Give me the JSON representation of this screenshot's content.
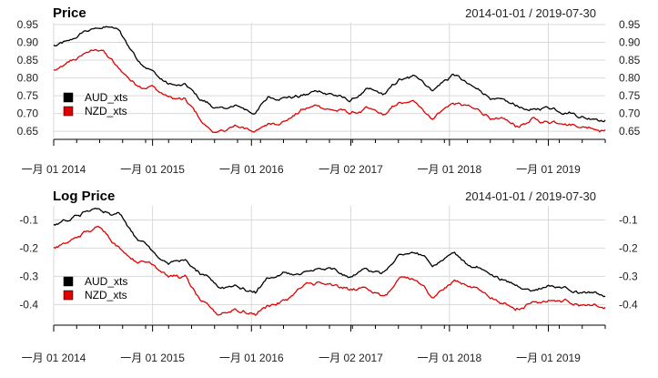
{
  "chart_data": [
    {
      "type": "line",
      "title": "Price",
      "date_range": "2014-01-01 / 2019-07-30",
      "xlabel": "",
      "ylabel": "",
      "ylim": [
        0.63,
        0.955
      ],
      "yticks": [
        0.65,
        0.7,
        0.75,
        0.8,
        0.85,
        0.9,
        0.95
      ],
      "ytick_labels": [
        "0.65",
        "0.70",
        "0.75",
        "0.80",
        "0.85",
        "0.90",
        "0.95"
      ],
      "grid": true,
      "legend_position": "bottom-left",
      "x": [
        "2014-01-01",
        "2014-03-01",
        "2014-05-01",
        "2014-07-01",
        "2014-09-01",
        "2014-11-01",
        "2015-01-01",
        "2015-03-01",
        "2015-05-01",
        "2015-07-01",
        "2015-09-01",
        "2015-11-01",
        "2016-01-15",
        "2016-03-01",
        "2016-05-01",
        "2016-07-01",
        "2016-09-01",
        "2016-11-01",
        "2017-01-01",
        "2017-03-01",
        "2017-05-01",
        "2017-07-01",
        "2017-09-01",
        "2017-11-01",
        "2018-01-15",
        "2018-03-01",
        "2018-05-01",
        "2018-07-01",
        "2018-09-01",
        "2018-11-01",
        "2019-01-01",
        "2019-03-01",
        "2019-05-01",
        "2019-07-30"
      ],
      "series": [
        {
          "name": "AUD_xts",
          "color": "#000000",
          "values": [
            0.89,
            0.9,
            0.93,
            0.94,
            0.93,
            0.86,
            0.82,
            0.78,
            0.78,
            0.74,
            0.71,
            0.72,
            0.7,
            0.74,
            0.75,
            0.75,
            0.76,
            0.75,
            0.73,
            0.76,
            0.75,
            0.79,
            0.8,
            0.77,
            0.81,
            0.78,
            0.76,
            0.74,
            0.72,
            0.71,
            0.72,
            0.71,
            0.7,
            0.69
          ]
        },
        {
          "name": "NZD_xts",
          "color": "#e00000",
          "values": [
            0.82,
            0.84,
            0.87,
            0.88,
            0.82,
            0.78,
            0.78,
            0.75,
            0.74,
            0.67,
            0.64,
            0.66,
            0.65,
            0.67,
            0.68,
            0.71,
            0.72,
            0.71,
            0.7,
            0.71,
            0.69,
            0.73,
            0.73,
            0.69,
            0.73,
            0.72,
            0.7,
            0.68,
            0.66,
            0.68,
            0.68,
            0.68,
            0.67,
            0.66
          ]
        }
      ]
    },
    {
      "type": "line",
      "title": "Log Price",
      "date_range": "2014-01-01 / 2019-07-30",
      "xlabel": "",
      "ylabel": "",
      "ylim": [
        -0.47,
        -0.05
      ],
      "yticks": [
        -0.4,
        -0.3,
        -0.2,
        -0.1
      ],
      "ytick_labels": [
        "-0.4",
        "-0.3",
        "-0.2",
        "-0.1"
      ],
      "grid": true,
      "legend_position": "bottom-left",
      "x": [
        "2014-01-01",
        "2014-03-01",
        "2014-05-01",
        "2014-07-01",
        "2014-09-01",
        "2014-11-01",
        "2015-01-01",
        "2015-03-01",
        "2015-05-01",
        "2015-07-01",
        "2015-09-01",
        "2015-11-01",
        "2016-01-15",
        "2016-03-01",
        "2016-05-01",
        "2016-07-01",
        "2016-09-01",
        "2016-11-01",
        "2017-01-01",
        "2017-03-01",
        "2017-05-01",
        "2017-07-01",
        "2017-09-01",
        "2017-11-01",
        "2018-01-15",
        "2018-03-01",
        "2018-05-01",
        "2018-07-01",
        "2018-09-01",
        "2018-11-01",
        "2019-01-01",
        "2019-03-01",
        "2019-05-01",
        "2019-07-30"
      ],
      "series": [
        {
          "name": "AUD_xts",
          "color": "#000000",
          "values": [
            -0.117,
            -0.105,
            -0.073,
            -0.062,
            -0.073,
            -0.151,
            -0.198,
            -0.248,
            -0.248,
            -0.301,
            -0.342,
            -0.329,
            -0.357,
            -0.301,
            -0.288,
            -0.288,
            -0.274,
            -0.288,
            -0.315,
            -0.274,
            -0.288,
            -0.236,
            -0.223,
            -0.261,
            -0.211,
            -0.248,
            -0.274,
            -0.301,
            -0.329,
            -0.342,
            -0.329,
            -0.342,
            -0.357,
            -0.371
          ]
        },
        {
          "name": "NZD_xts",
          "color": "#e00000",
          "values": [
            -0.198,
            -0.174,
            -0.139,
            -0.128,
            -0.198,
            -0.248,
            -0.248,
            -0.288,
            -0.301,
            -0.4,
            -0.446,
            -0.416,
            -0.431,
            -0.4,
            -0.386,
            -0.342,
            -0.329,
            -0.342,
            -0.357,
            -0.342,
            -0.371,
            -0.315,
            -0.315,
            -0.371,
            -0.315,
            -0.329,
            -0.357,
            -0.386,
            -0.416,
            -0.386,
            -0.386,
            -0.386,
            -0.4,
            -0.416
          ]
        }
      ]
    }
  ],
  "x_axis": {
    "tick_dates": [
      "2014-01-01",
      "2015-01-01",
      "2016-01-01",
      "2017-01-02",
      "2018-01-01",
      "2019-01-01"
    ],
    "tick_labels": [
      "一月 01 2014",
      "一月 01 2015",
      "一月 01 2016",
      "一月 02 2017",
      "一月 01 2018",
      "一月 01 2019"
    ]
  }
}
